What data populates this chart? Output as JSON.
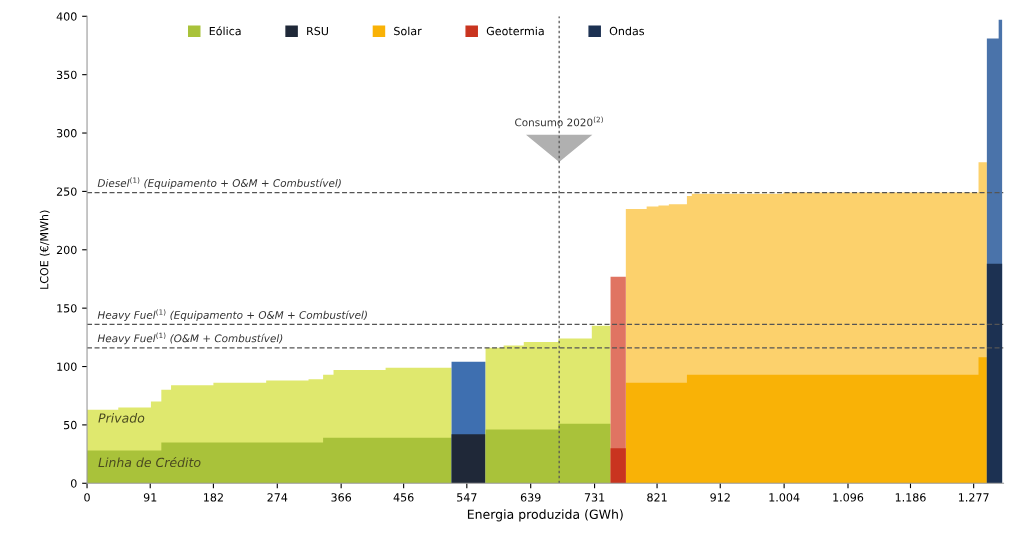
{
  "chart_data": {
    "type": "area",
    "xlabel": "Energia produzida (GWh)",
    "ylabel": "LCOE (€/MWh)",
    "xlim": [
      0,
      1320
    ],
    "ylim": [
      0,
      400
    ],
    "xticks": [
      0,
      91,
      182,
      274,
      366,
      456,
      547,
      639,
      731,
      821,
      912,
      {
        "value": 1004,
        "label": "1.004"
      },
      {
        "value": 1096,
        "label": "1.096"
      },
      {
        "value": 1186,
        "label": "1.186"
      },
      {
        "value": 1277,
        "label": "1.277"
      }
    ],
    "yticks": [
      0,
      50,
      100,
      150,
      200,
      250,
      300,
      350,
      400
    ],
    "grid": false,
    "legend": "top left",
    "series": [
      {
        "color": "#dfe86e",
        "x": [
          0,
          45,
          92,
          107,
          121,
          182,
          225,
          258,
          319,
          340,
          355,
          430,
          525
        ],
        "values": [
          63,
          65,
          70,
          80,
          84,
          86,
          86,
          88,
          89,
          93,
          97,
          99,
          99
        ]
      },
      {
        "name": "Eólica",
        "color": "#a9c23a",
        "x": [
          0,
          107,
          340,
          525
        ],
        "values": [
          28,
          35,
          39,
          39
        ]
      },
      {
        "color": "#3e6fb0",
        "x": [
          525,
          574
        ],
        "values": [
          104,
          104
        ]
      },
      {
        "name": "RSU",
        "color": "#1f2838",
        "x": [
          525,
          574
        ],
        "values": [
          42,
          42
        ]
      },
      {
        "color": "#dfe86e",
        "x": [
          574,
          600,
          629,
          679,
          727,
          754
        ],
        "values": [
          116,
          118,
          121,
          124,
          135,
          135
        ]
      },
      {
        "color": "#a9c23a",
        "x": [
          574,
          679,
          754
        ],
        "values": [
          46,
          51,
          51
        ]
      },
      {
        "color": "#fcd16c",
        "x": [
          776,
          806,
          823,
          838,
          864,
          871,
          921,
          950,
          1003,
          1073,
          1107,
          1150,
          1201,
          1263,
          1284,
          1296
        ],
        "values": [
          235,
          237,
          238,
          239,
          246,
          248,
          248,
          248,
          249,
          249,
          249,
          249,
          249,
          249,
          275,
          275
        ]
      },
      {
        "name": "Solar",
        "color": "#f9b206",
        "x": [
          776,
          864,
          1284,
          1296
        ],
        "values": [
          86,
          93,
          108,
          108
        ]
      },
      {
        "color": "#e07462",
        "x": [
          754,
          776
        ],
        "values": [
          177,
          177
        ]
      },
      {
        "name": "Geotermia",
        "color": "#c9341f",
        "x": [
          754,
          776
        ],
        "values": [
          30,
          30
        ]
      },
      {
        "color": "#4a73aa",
        "x": [
          1296,
          1313,
          1318
        ],
        "values": [
          381,
          397,
          397
        ]
      },
      {
        "name": "Ondas",
        "color": "#1c3152",
        "x": [
          1296,
          1318
        ],
        "values": [
          188,
          188
        ]
      }
    ],
    "ref_lines": [
      {
        "axis": "y",
        "value": 249,
        "label": "Diesel$^{(1)}$ (Equipamento + O&M + Combustível)",
        "color": "#555555",
        "line_style": "dashed"
      },
      {
        "axis": "y",
        "value": 136,
        "label": "Heavy Fuel$^{(1)}$ (Equipamento + O&M + Combustível)",
        "color": "#555555",
        "line_style": "dashed"
      },
      {
        "axis": "y",
        "value": 116,
        "label": "Heavy Fuel$^{(1)}$ (O&M + Combustível)",
        "color": "#555555",
        "line_style": "dashed"
      },
      {
        "axis": "x",
        "value": 680,
        "label": "Consumo 2020$^{(2)}$",
        "color": "#555555",
        "line_style": "dotted"
      }
    ],
    "annotations": [
      "Privado",
      "Linha de Crédito"
    ]
  }
}
